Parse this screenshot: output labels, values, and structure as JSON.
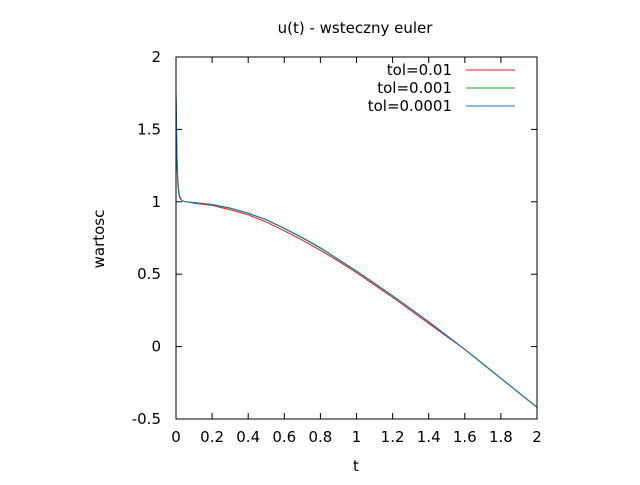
{
  "chart_data": {
    "type": "line",
    "title": "u(t) - wsteczny euler",
    "xlabel": "t",
    "ylabel": "wartosc",
    "xlim": [
      0,
      2
    ],
    "ylim": [
      -0.5,
      2
    ],
    "xticks": [
      0,
      0.2,
      0.4,
      0.6,
      0.8,
      1,
      1.2,
      1.4,
      1.6,
      1.8,
      2
    ],
    "xtick_labels": [
      "0",
      "0.2",
      "0.4",
      "0.6",
      "0.8",
      "1",
      "1.2",
      "1.4",
      "1.6",
      "1.8",
      "2"
    ],
    "yticks": [
      -0.5,
      0,
      0.5,
      1,
      1.5,
      2
    ],
    "ytick_labels": [
      "-0.5",
      "0",
      "0.5",
      "1",
      "1.5",
      "2"
    ],
    "grid": false,
    "legend_position": "top-right",
    "series": [
      {
        "name": "tol=0.01",
        "color": "#e41a1c",
        "x": [
          0,
          0.003,
          0.006,
          0.01,
          0.015,
          0.02,
          0.03,
          0.04,
          0.05,
          0.08,
          0.1,
          0.2,
          0.3,
          0.4,
          0.5,
          0.6,
          0.7,
          0.8,
          0.9,
          1.0,
          1.1,
          1.2,
          1.3,
          1.4,
          1.5,
          1.6,
          1.7,
          1.8,
          1.9,
          2.0
        ],
        "y": [
          1.74,
          1.5,
          1.3,
          1.16,
          1.08,
          1.04,
          1.015,
          1.005,
          1.0,
          0.995,
          0.99,
          0.975,
          0.945,
          0.91,
          0.86,
          0.8,
          0.735,
          0.665,
          0.59,
          0.51,
          0.425,
          0.34,
          0.25,
          0.16,
          0.07,
          -0.02,
          -0.12,
          -0.22,
          -0.32,
          -0.42
        ]
      },
      {
        "name": "tol=0.001",
        "color": "#1aa31a",
        "x": [
          0,
          0.002,
          0.004,
          0.007,
          0.01,
          0.015,
          0.02,
          0.03,
          0.04,
          0.05,
          0.08,
          0.1,
          0.2,
          0.3,
          0.4,
          0.5,
          0.6,
          0.7,
          0.8,
          0.9,
          1.0,
          1.1,
          1.2,
          1.3,
          1.4,
          1.5,
          1.6,
          1.7,
          1.8,
          1.9,
          2.0
        ],
        "y": [
          1.76,
          1.55,
          1.38,
          1.22,
          1.13,
          1.06,
          1.03,
          1.012,
          1.004,
          1.0,
          0.997,
          0.995,
          0.98,
          0.955,
          0.92,
          0.875,
          0.815,
          0.75,
          0.68,
          0.6,
          0.52,
          0.435,
          0.35,
          0.26,
          0.17,
          0.075,
          -0.02,
          -0.12,
          -0.22,
          -0.32,
          -0.42
        ]
      },
      {
        "name": "tol=0.0001",
        "color": "#1f6fc6",
        "x": [
          0,
          0.002,
          0.004,
          0.007,
          0.01,
          0.015,
          0.02,
          0.03,
          0.04,
          0.05,
          0.08,
          0.1,
          0.2,
          0.3,
          0.4,
          0.5,
          0.6,
          0.7,
          0.8,
          0.9,
          1.0,
          1.1,
          1.2,
          1.3,
          1.4,
          1.5,
          1.6,
          1.7,
          1.8,
          1.9,
          2.0
        ],
        "y": [
          1.76,
          1.55,
          1.38,
          1.22,
          1.13,
          1.06,
          1.03,
          1.012,
          1.004,
          1.0,
          0.997,
          0.995,
          0.982,
          0.957,
          0.922,
          0.877,
          0.818,
          0.753,
          0.683,
          0.603,
          0.523,
          0.438,
          0.352,
          0.262,
          0.172,
          0.077,
          -0.018,
          -0.118,
          -0.218,
          -0.318,
          -0.418
        ]
      }
    ]
  }
}
